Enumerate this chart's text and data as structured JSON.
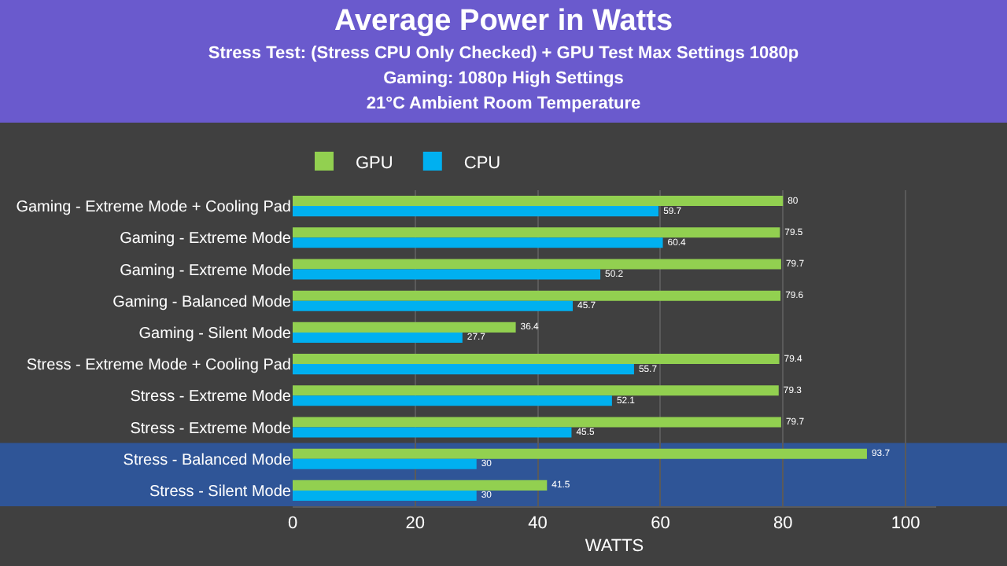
{
  "chart_data": {
    "type": "bar",
    "orientation": "horizontal",
    "title": "Average Power in Watts",
    "subtitle": "Stress Test: (Stress CPU Only Checked) + GPU Test Max Settings 1080p\nGaming: 1080p High Settings\n21°C Ambient Room Temperature",
    "categories": [
      "Gaming - Extreme Mode + Cooling Pad",
      "Gaming - Extreme Mode",
      "Gaming - Extreme Mode",
      "Gaming - Balanced Mode",
      "Gaming - Silent Mode",
      "Stress - Extreme Mode + Cooling Pad",
      "Stress - Extreme Mode",
      "Stress - Extreme Mode",
      "Stress - Balanced Mode",
      "Stress - Silent Mode"
    ],
    "series": [
      {
        "name": "GPU",
        "color": "#92d050",
        "values": [
          80,
          79.5,
          79.7,
          79.6,
          36.4,
          79.4,
          79.3,
          79.7,
          93.7,
          41.5
        ]
      },
      {
        "name": "CPU",
        "color": "#00b0f0",
        "values": [
          59.7,
          60.4,
          50.2,
          45.7,
          27.7,
          55.7,
          52.1,
          45.5,
          30,
          30
        ]
      }
    ],
    "xlabel": "WATTS",
    "xlim": [
      0,
      105
    ],
    "xticks": [
      0,
      20,
      40,
      60,
      80,
      100
    ],
    "grid": "x",
    "legend": "top",
    "data_labels": true,
    "bands": [
      {
        "axis": "y",
        "from": "Stress - Balanced Mode",
        "to": "Stress - Silent Mode",
        "color": "#2f5597"
      }
    ]
  }
}
